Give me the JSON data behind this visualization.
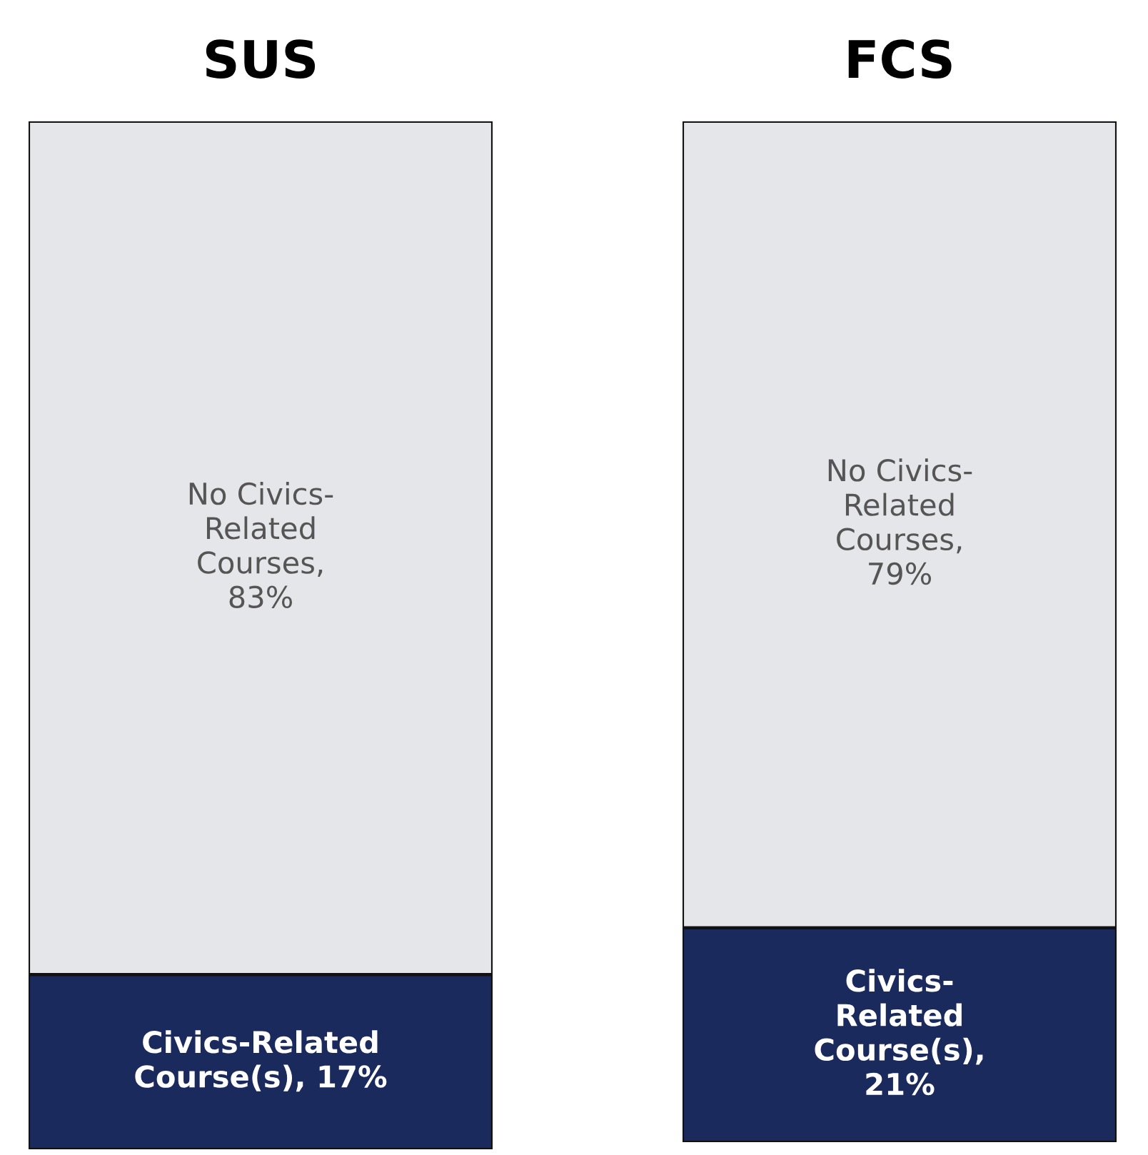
{
  "chart_data": [
    {
      "type": "bar",
      "title": "SUS",
      "categories": [
        null
      ],
      "stacked": true,
      "ylim": [
        0,
        100
      ],
      "grid": false,
      "legend": false,
      "series": [
        {
          "color": "#1b2a5c",
          "values": [
            17
          ],
          "value_labels": [
            "Civics-Related\nCourse(s), 17%"
          ]
        },
        {
          "color": "#e4e6ea",
          "values": [
            83
          ],
          "value_labels": [
            "No Civics-\nRelated\nCourses,\n83%"
          ]
        }
      ]
    },
    {
      "type": "bar",
      "title": "FCS",
      "categories": [
        null
      ],
      "stacked": true,
      "ylim": [
        0,
        100
      ],
      "grid": false,
      "legend": false,
      "series": [
        {
          "color": "#1b2a5c",
          "values": [
            21
          ],
          "value_labels": [
            "Civics-\nRelated\nCourse(s),\n21%"
          ]
        },
        {
          "color": "#e4e6ea",
          "values": [
            79
          ],
          "value_labels": [
            "No Civics-\nRelated\nCourses,\n79%"
          ]
        }
      ]
    }
  ]
}
